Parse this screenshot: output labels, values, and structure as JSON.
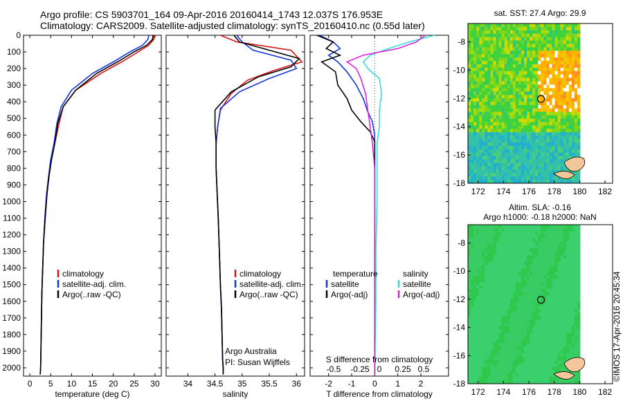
{
  "header": {
    "line1": "Argo profile: CS 5903701_164 09-Apr-2016 20160414_1743 12.037S 176.953E",
    "line2": "Climatology: CARS2009. Satellite-adjusted climatology: synTS_20160410.nc (0.55d later)"
  },
  "colors": {
    "climatology": "#dd1111",
    "satellite": "#1133dd",
    "argo": "#000000",
    "satellite_s": "#33dddd",
    "argo_s": "#dd22dd"
  },
  "chart_data": [
    {
      "type": "line",
      "xlabel": "temperature (deg C)",
      "xticks": [
        0,
        5,
        10,
        15,
        20,
        25,
        30
      ],
      "xlim": [
        -1.5,
        31.5
      ],
      "ylim": [
        0,
        2050
      ],
      "yticks": [
        0,
        100,
        200,
        300,
        400,
        500,
        600,
        700,
        800,
        900,
        1000,
        1100,
        1200,
        1300,
        1400,
        1500,
        1600,
        1700,
        1800,
        1900,
        2000
      ],
      "legend": [
        "climatology",
        "satellite-adj. clim.",
        "Argo(..raw -QC)"
      ],
      "series": [
        {
          "name": "climatology",
          "x": [
            29.8,
            29.7,
            28.5,
            26,
            22,
            17,
            11,
            8,
            7,
            6,
            5,
            4.5,
            4,
            3.6,
            3.3,
            3.1,
            2.9,
            2.8,
            2.7,
            2.6,
            2.5
          ],
          "y": [
            0,
            25,
            60,
            100,
            160,
            230,
            330,
            430,
            530,
            650,
            750,
            850,
            960,
            1100,
            1250,
            1400,
            1550,
            1700,
            1850,
            2000,
            2040
          ]
        },
        {
          "name": "satellite-adj. clim.",
          "x": [
            28.5,
            28.3,
            27,
            24,
            20,
            15,
            10,
            7.5,
            6.5,
            5.8,
            5,
            4.5,
            4,
            3.6,
            3.3,
            3.1,
            2.9,
            2.8,
            2.7,
            2.6,
            2.5
          ],
          "y": [
            0,
            25,
            60,
            100,
            160,
            230,
            330,
            430,
            530,
            650,
            750,
            850,
            960,
            1100,
            1250,
            1400,
            1550,
            1700,
            1850,
            2000,
            2040
          ]
        },
        {
          "name": "Argo(..raw -QC)",
          "x": [
            29.5,
            29.4,
            28,
            25,
            21,
            16,
            11,
            8,
            6.7,
            6,
            5.2,
            4.6,
            4.1,
            3.7,
            3.3,
            3.1,
            2.9,
            2.8,
            2.7,
            2.6,
            2.5
          ],
          "y": [
            0,
            25,
            60,
            100,
            160,
            230,
            330,
            430,
            530,
            650,
            750,
            850,
            960,
            1100,
            1250,
            1400,
            1550,
            1700,
            1850,
            2000,
            2040
          ]
        }
      ]
    },
    {
      "type": "line",
      "xlabel": "salinity",
      "xticks": [
        34,
        34.5,
        35,
        35.5,
        36
      ],
      "xlim": [
        33.6,
        36.15
      ],
      "ylim": [
        0,
        2050
      ],
      "legend": [
        "climatology",
        "satellite-adj. clim.",
        "Argo(..raw -QC)"
      ],
      "annotation": [
        "Argo Australia",
        "PI: Susan Wijffels"
      ],
      "series": [
        {
          "name": "climatology",
          "x": [
            34.6,
            34.9,
            35.9,
            36.1,
            35.6,
            35.1,
            34.8,
            34.6,
            34.55,
            34.52,
            34.52,
            34.54,
            34.56,
            34.58,
            34.6,
            34.62,
            34.63,
            34.64,
            34.65,
            34.65
          ],
          "y": [
            0,
            40,
            90,
            160,
            210,
            270,
            350,
            450,
            550,
            650,
            800,
            950,
            1100,
            1300,
            1500,
            1650,
            1800,
            1950,
            2000,
            2040
          ]
        },
        {
          "name": "satellite-adj. clim.",
          "x": [
            34.9,
            35,
            35.2,
            35.9,
            36,
            35.5,
            34.95,
            34.6,
            34.55,
            34.52,
            34.52,
            34.54,
            34.56,
            34.58,
            34.6,
            34.62,
            34.63,
            34.64,
            34.65,
            34.65
          ],
          "y": [
            0,
            40,
            90,
            150,
            200,
            260,
            340,
            440,
            550,
            650,
            800,
            950,
            1100,
            1300,
            1500,
            1650,
            1800,
            1950,
            2000,
            2040
          ]
        },
        {
          "name": "Argo(..raw -QC)",
          "x": [
            34.85,
            34.95,
            35.5,
            36.05,
            35.9,
            35.3,
            34.8,
            34.5,
            34.5,
            34.52,
            34.52,
            34.54,
            34.56,
            34.58,
            34.6,
            34.62,
            34.63,
            34.64,
            34.65,
            34.65
          ],
          "y": [
            0,
            40,
            90,
            140,
            190,
            250,
            340,
            450,
            550,
            650,
            800,
            950,
            1100,
            1300,
            1500,
            1650,
            1800,
            1950,
            2000,
            2040
          ]
        }
      ]
    },
    {
      "type": "line",
      "xlabel": "T difference from climatology",
      "xlabel2": "S difference from climatology",
      "xticks": [
        -2,
        -1,
        0,
        1,
        2
      ],
      "xticks_top": [
        "-0.5",
        "-0.25",
        "0",
        "0.25",
        "0.5"
      ],
      "xlim": [
        -2.8,
        3.2
      ],
      "ylim": [
        0,
        2050
      ],
      "legend_t": [
        "temperature",
        "satellite",
        "Argo(-adj)"
      ],
      "legend_s": [
        "salinity",
        "satellite",
        "Argo(-adj)"
      ],
      "series": [
        {
          "name": "satellite",
          "x": [
            -2.4,
            -1.8,
            -1.5,
            -2,
            -1.6,
            -1.2,
            -0.8,
            -0.5,
            -0.3,
            -0.1,
            0,
            0,
            0,
            0,
            0,
            0,
            0
          ],
          "y": [
            0,
            40,
            80,
            120,
            160,
            220,
            300,
            380,
            460,
            520,
            600,
            700,
            900,
            1200,
            1500,
            1800,
            2040
          ]
        },
        {
          "name": "Argo(-adj)",
          "x": [
            -2.5,
            -1.8,
            -2.1,
            -1.5,
            -2.3,
            -1.7,
            -1.6,
            -1.2,
            -1,
            -0.6,
            -0.2,
            0,
            0,
            0,
            0,
            0,
            0
          ],
          "y": [
            0,
            40,
            80,
            120,
            160,
            220,
            300,
            380,
            450,
            520,
            580,
            640,
            800,
            1100,
            1400,
            1700,
            2040
          ]
        },
        {
          "name": "satellite",
          "x": [
            2.6,
            1.5,
            0.6,
            -0.2,
            -0.5,
            -0.3,
            0.2,
            0.3,
            0.2,
            0.2,
            0.1,
            0.1,
            0.1,
            0.05,
            0.05,
            0
          ],
          "y": [
            0,
            40,
            80,
            120,
            160,
            200,
            260,
            350,
            450,
            550,
            650,
            800,
            1000,
            1300,
            1600,
            2040
          ]
        },
        {
          "name": "Argo(-adj)",
          "x": [
            2.2,
            1.8,
            1,
            -0.5,
            -1.2,
            -0.8,
            -0.6,
            -0.4,
            -0.3,
            -0.2,
            -0.1,
            0,
            0,
            0,
            0,
            0
          ],
          "y": [
            0,
            40,
            80,
            120,
            160,
            200,
            260,
            350,
            450,
            550,
            650,
            800,
            1000,
            1300,
            1600,
            2040
          ]
        }
      ]
    }
  ],
  "maps": {
    "sst": {
      "title": "sat. SST: 27.4 Argo: 29.9",
      "xticks": [
        "172",
        "174",
        "176",
        "178",
        "180",
        "182"
      ],
      "yticks": [
        "-8",
        "-10",
        "-12",
        "-14",
        "-16",
        "-18"
      ]
    },
    "sla": {
      "title1": "Altim. SLA: -0.16",
      "title2": "Argo h1000: -0.18 h2000: NaN",
      "xticks": [
        "172",
        "174",
        "176",
        "178",
        "180",
        "182"
      ],
      "yticks": [
        "-8",
        "-10",
        "-12",
        "-14",
        "-16",
        "-18"
      ]
    }
  },
  "side_text": "©IMOS 17-Apr-2016 20:45:34"
}
